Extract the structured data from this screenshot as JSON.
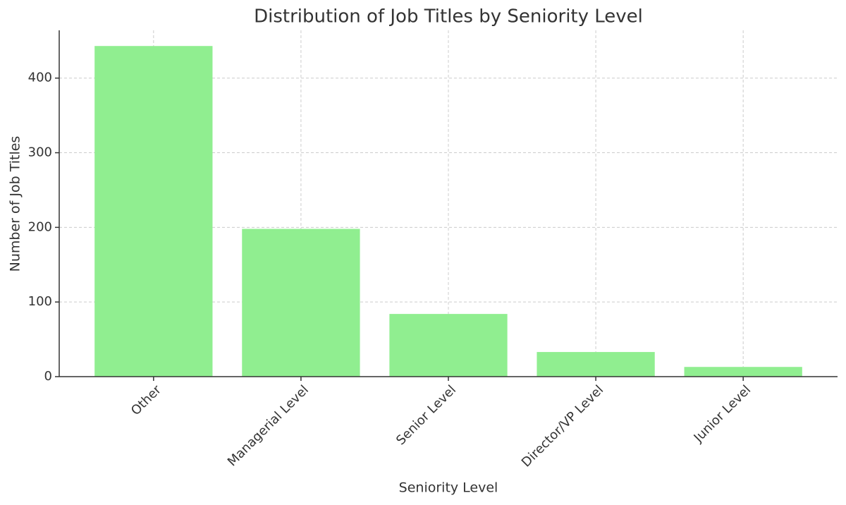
{
  "chart_data": {
    "type": "bar",
    "title": "Distribution of Job Titles by Seniority Level",
    "x_label": "Seniority Level",
    "y_label": "Number of Job Titles",
    "categories": [
      "Other",
      "Managerial Level",
      "Senior Level",
      "Director/VP Level",
      "Junior Level"
    ],
    "values": [
      443,
      198,
      84,
      33,
      13
    ],
    "color": "#90ee90",
    "ylim": [
      0,
      464
    ],
    "yticks": [
      0,
      100,
      200,
      300,
      400
    ],
    "grid": true
  }
}
